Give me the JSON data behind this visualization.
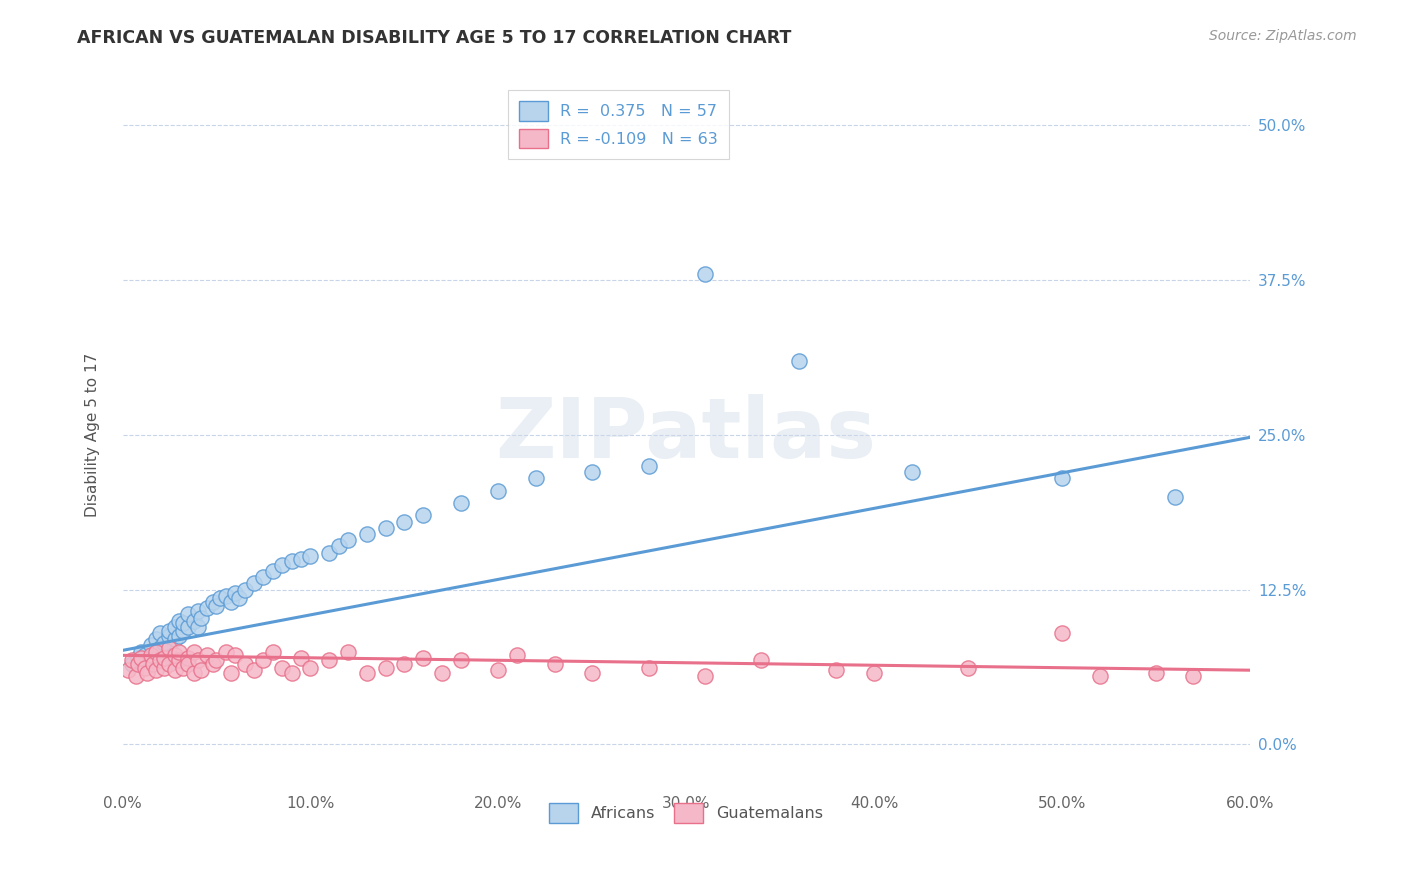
{
  "title": "AFRICAN VS GUATEMALAN DISABILITY AGE 5 TO 17 CORRELATION CHART",
  "source": "Source: ZipAtlas.com",
  "xlim": [
    0.0,
    0.6
  ],
  "ylim": [
    -0.035,
    0.535
  ],
  "ylabel": "Disability Age 5 to 17",
  "legend_bottom": [
    "Africans",
    "Guatemalans"
  ],
  "africans_color": "#b8d4ed",
  "guatemalans_color": "#f5b8c8",
  "line_african_color": "#5b9bd5",
  "line_guatemalan_color": "#e8708a",
  "africans_x": [
    0.005,
    0.008,
    0.01,
    0.012,
    0.015,
    0.015,
    0.018,
    0.02,
    0.02,
    0.022,
    0.025,
    0.025,
    0.028,
    0.028,
    0.03,
    0.03,
    0.032,
    0.032,
    0.035,
    0.035,
    0.038,
    0.04,
    0.04,
    0.042,
    0.045,
    0.048,
    0.05,
    0.052,
    0.055,
    0.058,
    0.06,
    0.062,
    0.065,
    0.07,
    0.075,
    0.08,
    0.085,
    0.09,
    0.095,
    0.1,
    0.11,
    0.115,
    0.12,
    0.13,
    0.14,
    0.15,
    0.16,
    0.18,
    0.2,
    0.22,
    0.25,
    0.28,
    0.31,
    0.36,
    0.42,
    0.5,
    0.56
  ],
  "africans_y": [
    0.065,
    0.07,
    0.075,
    0.072,
    0.08,
    0.068,
    0.085,
    0.078,
    0.09,
    0.082,
    0.088,
    0.092,
    0.085,
    0.095,
    0.088,
    0.1,
    0.092,
    0.098,
    0.095,
    0.105,
    0.1,
    0.108,
    0.095,
    0.102,
    0.11,
    0.115,
    0.112,
    0.118,
    0.12,
    0.115,
    0.122,
    0.118,
    0.125,
    0.13,
    0.135,
    0.14,
    0.145,
    0.148,
    0.15,
    0.152,
    0.155,
    0.16,
    0.165,
    0.17,
    0.175,
    0.18,
    0.185,
    0.195,
    0.205,
    0.215,
    0.22,
    0.225,
    0.38,
    0.31,
    0.22,
    0.215,
    0.2
  ],
  "guatemalans_x": [
    0.003,
    0.005,
    0.007,
    0.008,
    0.01,
    0.012,
    0.013,
    0.015,
    0.016,
    0.018,
    0.018,
    0.02,
    0.022,
    0.022,
    0.025,
    0.025,
    0.028,
    0.028,
    0.03,
    0.03,
    0.032,
    0.035,
    0.035,
    0.038,
    0.038,
    0.04,
    0.042,
    0.045,
    0.048,
    0.05,
    0.055,
    0.058,
    0.06,
    0.065,
    0.07,
    0.075,
    0.08,
    0.085,
    0.09,
    0.095,
    0.1,
    0.11,
    0.12,
    0.13,
    0.14,
    0.15,
    0.16,
    0.17,
    0.18,
    0.2,
    0.21,
    0.23,
    0.25,
    0.28,
    0.31,
    0.34,
    0.38,
    0.4,
    0.45,
    0.5,
    0.52,
    0.55,
    0.57
  ],
  "guatemalans_y": [
    0.06,
    0.068,
    0.055,
    0.065,
    0.07,
    0.062,
    0.058,
    0.072,
    0.065,
    0.06,
    0.075,
    0.068,
    0.062,
    0.07,
    0.065,
    0.078,
    0.06,
    0.072,
    0.068,
    0.075,
    0.062,
    0.07,
    0.065,
    0.058,
    0.075,
    0.068,
    0.06,
    0.072,
    0.065,
    0.068,
    0.075,
    0.058,
    0.072,
    0.065,
    0.06,
    0.068,
    0.075,
    0.062,
    0.058,
    0.07,
    0.062,
    0.068,
    0.075,
    0.058,
    0.062,
    0.065,
    0.07,
    0.058,
    0.068,
    0.06,
    0.072,
    0.065,
    0.058,
    0.062,
    0.055,
    0.068,
    0.06,
    0.058,
    0.062,
    0.09,
    0.055,
    0.058,
    0.055
  ],
  "african_line_x0": 0.0,
  "african_line_y0": 0.076,
  "african_line_x1": 0.6,
  "african_line_y1": 0.248,
  "guatemalan_line_x0": 0.0,
  "guatemalan_line_y0": 0.072,
  "guatemalan_line_x1": 0.6,
  "guatemalan_line_y1": 0.06,
  "watermark": "ZIPatlas",
  "background_color": "#ffffff",
  "grid_color": "#c8d4e8"
}
